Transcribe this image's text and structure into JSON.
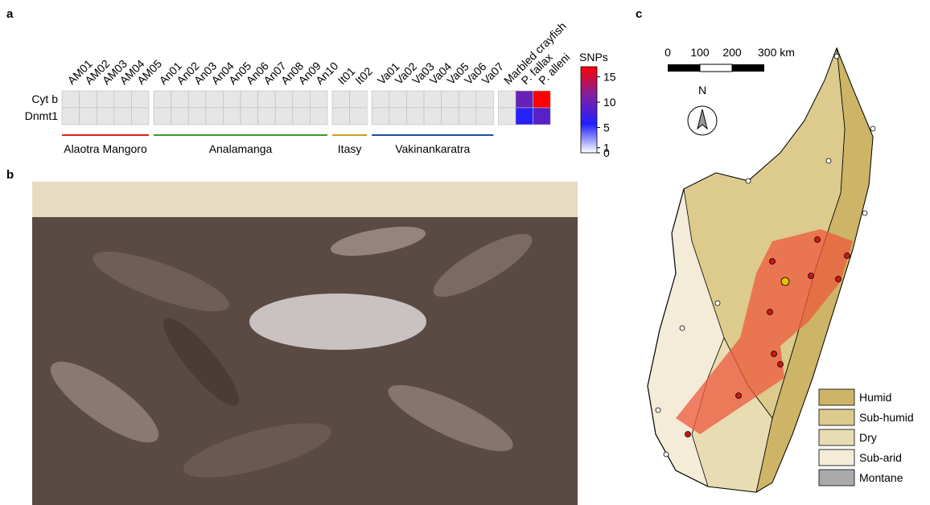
{
  "panel_labels": [
    "a",
    "b",
    "c"
  ],
  "heatmap": {
    "rows": [
      "Cyt b",
      "Dnmt1"
    ],
    "zero_color": "#e6e6e6",
    "blocks": [
      {
        "name": "Alaotra Mangoro",
        "color": "#e0201c",
        "samples": [
          {
            "id": "AM01",
            "values": [
              0,
              0
            ]
          },
          {
            "id": "AM02",
            "values": [
              0,
              0
            ]
          },
          {
            "id": "AM03",
            "values": [
              0,
              0
            ]
          },
          {
            "id": "AM04",
            "values": [
              0,
              0
            ]
          },
          {
            "id": "AM05",
            "values": [
              0,
              0
            ]
          }
        ]
      },
      {
        "name": "Analamanga",
        "color": "#3a9a2a",
        "samples": [
          {
            "id": "An01",
            "values": [
              0,
              0
            ]
          },
          {
            "id": "An02",
            "values": [
              0,
              0
            ]
          },
          {
            "id": "An03",
            "values": [
              0,
              0
            ]
          },
          {
            "id": "An04",
            "values": [
              0,
              0
            ]
          },
          {
            "id": "An05",
            "values": [
              0,
              0
            ]
          },
          {
            "id": "An06",
            "values": [
              0,
              0
            ]
          },
          {
            "id": "An07",
            "values": [
              0,
              0
            ]
          },
          {
            "id": "An08",
            "values": [
              0,
              0
            ]
          },
          {
            "id": "An09",
            "values": [
              0,
              0
            ]
          },
          {
            "id": "An10",
            "values": [
              0,
              0
            ]
          }
        ]
      },
      {
        "name": "Itasy",
        "color": "#c9a21a",
        "samples": [
          {
            "id": "It01",
            "values": [
              0,
              0
            ]
          },
          {
            "id": "It02",
            "values": [
              0,
              0
            ]
          }
        ]
      },
      {
        "name": "Vakinankaratra",
        "color": "#1f4fa8",
        "samples": [
          {
            "id": "Va01",
            "values": [
              0,
              0
            ]
          },
          {
            "id": "Va02",
            "values": [
              0,
              0
            ]
          },
          {
            "id": "Va03",
            "values": [
              0,
              0
            ]
          },
          {
            "id": "Va04",
            "values": [
              0,
              0
            ]
          },
          {
            "id": "Va05",
            "values": [
              0,
              0
            ]
          },
          {
            "id": "Va06",
            "values": [
              0,
              0
            ]
          },
          {
            "id": "Va07",
            "values": [
              0,
              0
            ]
          }
        ]
      },
      {
        "samples": [
          {
            "id": "Marbled crayfish",
            "values": [
              0,
              0
            ]
          },
          {
            "id": "P. fallax",
            "values": [
              10,
              6
            ]
          },
          {
            "id": "P. alleni",
            "values": [
              17,
              9
            ]
          }
        ]
      }
    ],
    "colorbar": {
      "label": "SNPs",
      "lim": [
        0,
        17
      ],
      "ticks": [
        0,
        1,
        5,
        10,
        15
      ],
      "colors": [
        "#ffffff",
        "#2020ff",
        "#8020a0",
        "#ff0000"
      ]
    }
  },
  "map": {
    "scale_bar": [
      "0",
      "100",
      "200",
      "300 km"
    ],
    "north": "N",
    "legend": [
      {
        "label": "Humid",
        "color": "#cdb466"
      },
      {
        "label": "Sub-humid",
        "color": "#dccb8c"
      },
      {
        "label": "Dry",
        "color": "#e8dcb2"
      },
      {
        "label": "Sub-arid",
        "color": "#f4ecd8"
      },
      {
        "label": "Montane",
        "color": "#aaaaaa"
      }
    ]
  }
}
